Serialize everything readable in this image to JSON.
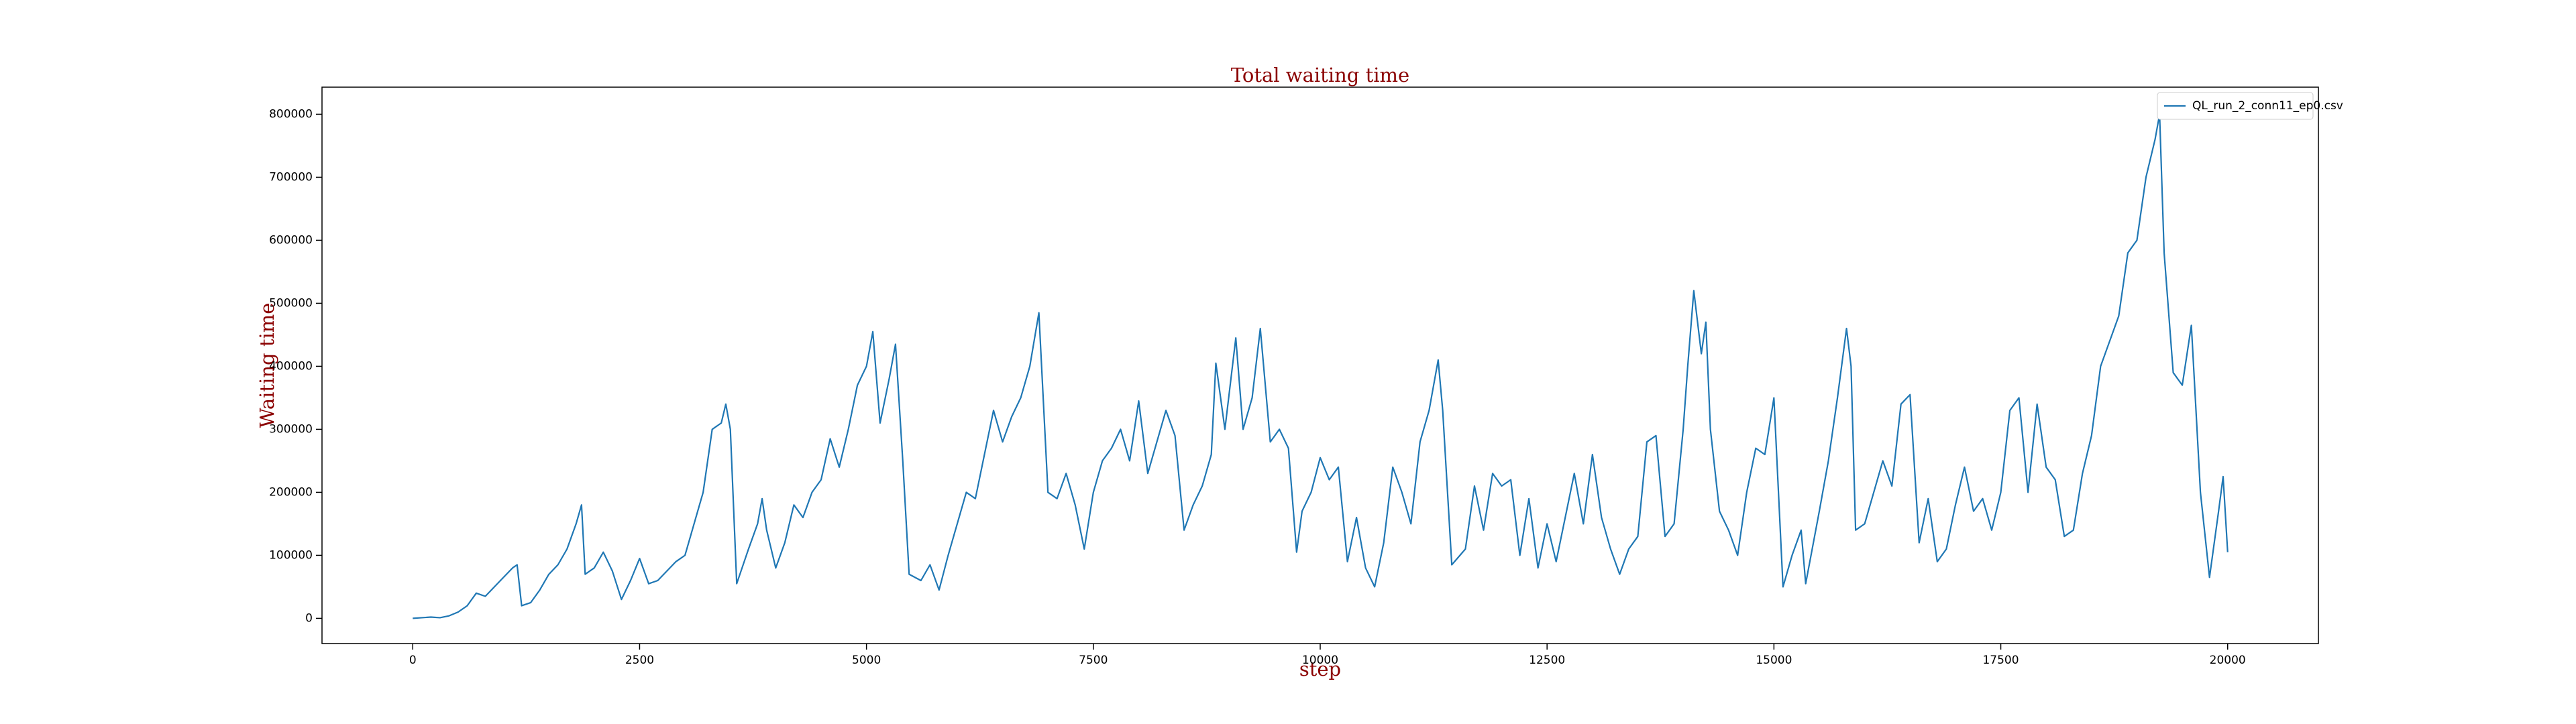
{
  "chart_data": {
    "type": "line",
    "title": "Total waiting time",
    "x_label": "step",
    "y_label": "Waiting time",
    "legend": "upper right",
    "xlim": [
      -1000,
      21000
    ],
    "ylim": [
      -40000,
      843000
    ],
    "xticks": [
      0,
      2500,
      5000,
      7500,
      10000,
      12500,
      15000,
      17500,
      20000
    ],
    "yticks": [
      0,
      100000,
      200000,
      300000,
      400000,
      500000,
      600000,
      700000,
      800000
    ],
    "x": [
      0,
      100,
      200,
      300,
      400,
      500,
      600,
      700,
      800,
      900,
      1000,
      1100,
      1150,
      1200,
      1300,
      1400,
      1500,
      1600,
      1700,
      1800,
      1860,
      1900,
      2000,
      2100,
      2200,
      2300,
      2400,
      2500,
      2600,
      2700,
      2800,
      2900,
      3000,
      3100,
      3200,
      3300,
      3400,
      3450,
      3500,
      3570,
      3700,
      3800,
      3850,
      3900,
      4000,
      4100,
      4200,
      4300,
      4400,
      4500,
      4600,
      4700,
      4800,
      4900,
      5000,
      5070,
      5150,
      5250,
      5320,
      5400,
      5470,
      5600,
      5700,
      5800,
      5900,
      6000,
      6100,
      6200,
      6300,
      6400,
      6500,
      6600,
      6700,
      6800,
      6900,
      7000,
      7100,
      7200,
      7300,
      7400,
      7500,
      7600,
      7700,
      7800,
      7900,
      8000,
      8100,
      8200,
      8300,
      8400,
      8500,
      8600,
      8700,
      8800,
      8850,
      8950,
      9070,
      9150,
      9250,
      9340,
      9450,
      9550,
      9650,
      9740,
      9800,
      9900,
      10000,
      10100,
      10200,
      10300,
      10400,
      10500,
      10600,
      10700,
      10800,
      10900,
      11000,
      11100,
      11200,
      11300,
      11350,
      11450,
      11600,
      11700,
      11800,
      11900,
      12000,
      12100,
      12200,
      12300,
      12400,
      12500,
      12600,
      12700,
      12800,
      12900,
      13000,
      13100,
      13200,
      13300,
      13400,
      13500,
      13600,
      13700,
      13800,
      13900,
      14000,
      14050,
      14117,
      14200,
      14250,
      14300,
      14400,
      14500,
      14600,
      14700,
      14800,
      14900,
      15000,
      15100,
      15200,
      15300,
      15350,
      15500,
      15600,
      15700,
      15800,
      15850,
      15900,
      16000,
      16100,
      16200,
      16300,
      16400,
      16500,
      16600,
      16700,
      16800,
      16900,
      17000,
      17100,
      17200,
      17300,
      17400,
      17500,
      17600,
      17700,
      17800,
      17900,
      18000,
      18100,
      18200,
      18300,
      18400,
      18500,
      18600,
      18700,
      18800,
      18900,
      19000,
      19100,
      19200,
      19250,
      19300,
      19400,
      19500,
      19600,
      19700,
      19800,
      19900,
      19950,
      20000
    ],
    "series": [
      {
        "name": "QL_run_2_conn11_ep0.csv",
        "color": "#1f77b4",
        "values": [
          0,
          1000,
          2000,
          1000,
          4000,
          10000,
          20000,
          40000,
          35000,
          50000,
          65000,
          80000,
          85000,
          20000,
          25000,
          45000,
          70000,
          85000,
          110000,
          150000,
          180000,
          70000,
          80000,
          105000,
          75000,
          30000,
          60000,
          95000,
          55000,
          60000,
          75000,
          90000,
          100000,
          150000,
          200000,
          300000,
          310000,
          340000,
          300000,
          55000,
          110000,
          150000,
          190000,
          140000,
          80000,
          120000,
          180000,
          160000,
          200000,
          220000,
          285000,
          240000,
          300000,
          370000,
          400000,
          455000,
          310000,
          380000,
          435000,
          250000,
          70000,
          60000,
          85000,
          45000,
          100000,
          150000,
          200000,
          190000,
          260000,
          330000,
          280000,
          320000,
          350000,
          400000,
          485000,
          200000,
          190000,
          230000,
          180000,
          110000,
          200000,
          250000,
          270000,
          300000,
          250000,
          345000,
          230000,
          280000,
          330000,
          290000,
          140000,
          180000,
          210000,
          260000,
          405000,
          300000,
          445000,
          300000,
          350000,
          460000,
          280000,
          300000,
          270000,
          105000,
          170000,
          200000,
          255000,
          220000,
          240000,
          90000,
          160000,
          80000,
          50000,
          120000,
          240000,
          200000,
          150000,
          280000,
          330000,
          410000,
          330000,
          85000,
          110000,
          210000,
          140000,
          230000,
          210000,
          220000,
          100000,
          190000,
          80000,
          150000,
          90000,
          160000,
          230000,
          150000,
          260000,
          160000,
          110000,
          70000,
          110000,
          130000,
          280000,
          290000,
          130000,
          150000,
          300000,
          400000,
          520000,
          420000,
          470000,
          300000,
          170000,
          140000,
          100000,
          200000,
          270000,
          260000,
          350000,
          50000,
          100000,
          140000,
          55000,
          170000,
          250000,
          350000,
          460000,
          400000,
          140000,
          150000,
          200000,
          250000,
          210000,
          340000,
          355000,
          120000,
          190000,
          90000,
          110000,
          180000,
          240000,
          170000,
          190000,
          140000,
          200000,
          330000,
          350000,
          200000,
          340000,
          240000,
          220000,
          130000,
          140000,
          230000,
          290000,
          400000,
          440000,
          480000,
          580000,
          600000,
          700000,
          760000,
          800000,
          580000,
          390000,
          370000,
          465000,
          200000,
          65000,
          170000,
          225000,
          105000
        ]
      }
    ]
  }
}
